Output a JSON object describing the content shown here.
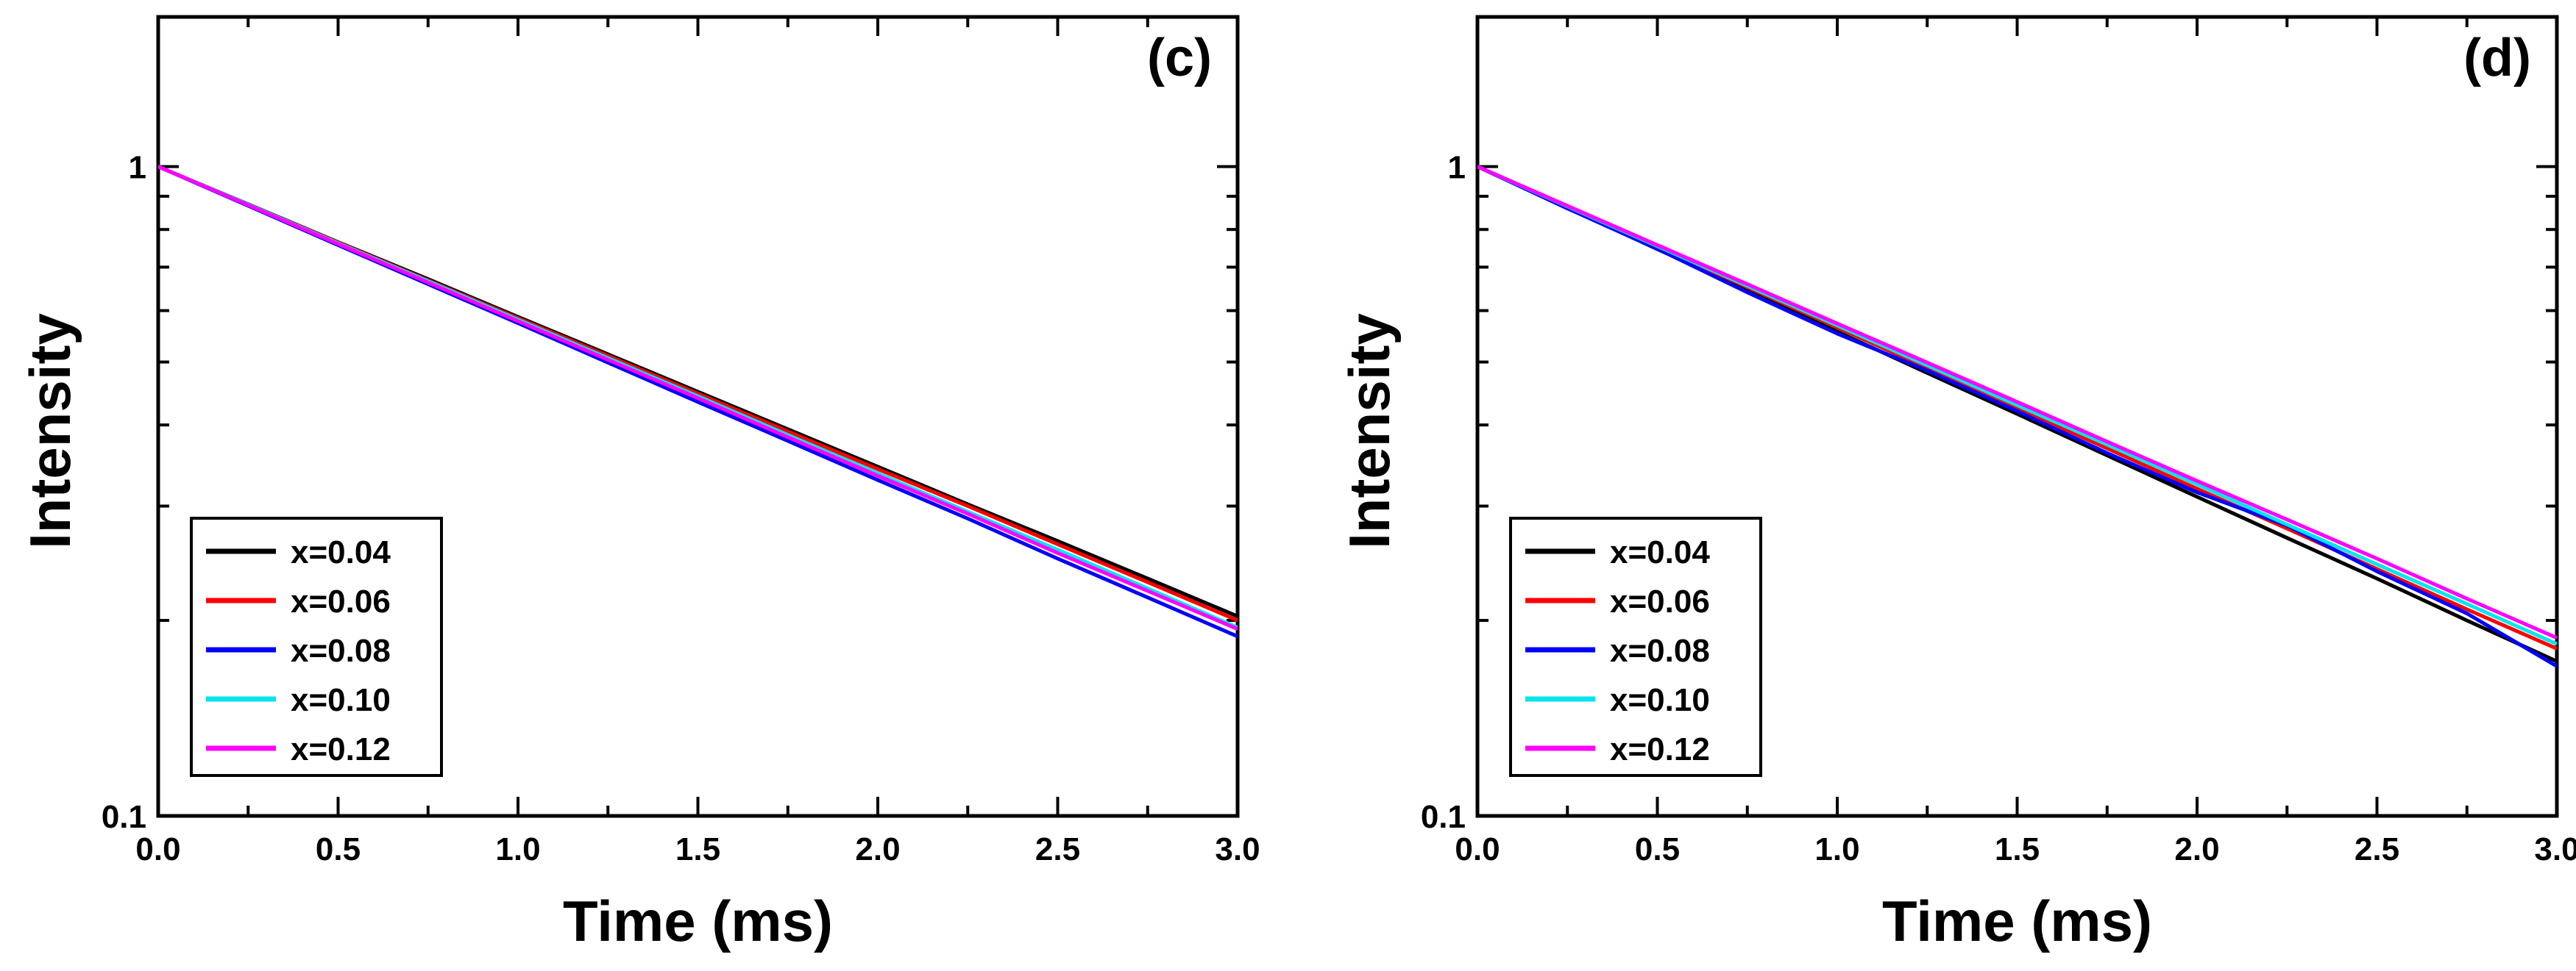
{
  "chart_data": [
    {
      "type": "line",
      "panel_label": "(c)",
      "xlabel": "Time (ms)",
      "ylabel": "Intensity",
      "yscale": "log",
      "xlim": [
        0.0,
        3.0
      ],
      "ylim": [
        0.1,
        1.7
      ],
      "xticks": [
        0.0,
        0.5,
        1.0,
        1.5,
        2.0,
        2.5,
        3.0
      ],
      "xtick_labels": [
        "0.0",
        "0.5",
        "1.0",
        "1.5",
        "2.0",
        "2.5",
        "3.0"
      ],
      "yticks": [
        0.1,
        1
      ],
      "ytick_labels": [
        "0.1",
        "1"
      ],
      "legend_position": "bottom-left",
      "x": [
        0.0,
        0.25,
        0.5,
        0.75,
        1.0,
        1.25,
        1.5,
        1.75,
        2.0,
        2.25,
        2.5,
        2.75,
        3.0
      ],
      "series": [
        {
          "name": "x=0.04",
          "color": "#000000",
          "values": [
            1.0,
            0.875,
            0.765,
            0.671,
            0.587,
            0.514,
            0.45,
            0.394,
            0.345,
            0.302,
            0.265,
            0.232,
            0.203
          ]
        },
        {
          "name": "x=0.06",
          "color": "#ff0000",
          "values": [
            1.0,
            0.874,
            0.764,
            0.668,
            0.584,
            0.511,
            0.447,
            0.391,
            0.342,
            0.3,
            0.262,
            0.229,
            0.2
          ]
        },
        {
          "name": "x=0.08",
          "color": "#0000ff",
          "values": [
            1.0,
            0.87,
            0.757,
            0.659,
            0.574,
            0.499,
            0.434,
            0.378,
            0.329,
            0.287,
            0.249,
            0.217,
            0.189
          ]
        },
        {
          "name": "x=0.10",
          "color": "#00e5ee",
          "values": [
            1.0,
            0.874,
            0.762,
            0.666,
            0.581,
            0.507,
            0.443,
            0.386,
            0.337,
            0.294,
            0.257,
            0.224,
            0.195
          ]
        },
        {
          "name": "x=0.12",
          "color": "#ff00ff",
          "values": [
            1.0,
            0.872,
            0.76,
            0.663,
            0.578,
            0.504,
            0.44,
            0.383,
            0.334,
            0.292,
            0.254,
            0.222,
            0.194
          ]
        }
      ]
    },
    {
      "type": "line",
      "panel_label": "(d)",
      "xlabel": "Time (ms)",
      "ylabel": "Intensity",
      "yscale": "log",
      "xlim": [
        0.0,
        3.0
      ],
      "ylim": [
        0.1,
        1.7
      ],
      "xticks": [
        0.0,
        0.5,
        1.0,
        1.5,
        2.0,
        2.5,
        3.0
      ],
      "xtick_labels": [
        "0.0",
        "0.5",
        "1.0",
        "1.5",
        "2.0",
        "2.5",
        "3.0"
      ],
      "yticks": [
        0.1,
        1
      ],
      "ytick_labels": [
        "0.1",
        "1"
      ],
      "legend_position": "bottom-left",
      "x": [
        0.0,
        0.25,
        0.5,
        0.75,
        1.0,
        1.25,
        1.5,
        1.75,
        2.0,
        2.25,
        2.5,
        2.75,
        3.0
      ],
      "series": [
        {
          "name": "x=0.04",
          "color": "#000000",
          "values": [
            1.0,
            0.864,
            0.746,
            0.645,
            0.557,
            0.481,
            0.416,
            0.359,
            0.31,
            0.268,
            0.232,
            0.2,
            0.173
          ]
        },
        {
          "name": "x=0.06",
          "color": "#ff0000",
          "values": [
            1.0,
            0.867,
            0.752,
            0.652,
            0.565,
            0.49,
            0.425,
            0.368,
            0.319,
            0.277,
            0.24,
            0.208,
            0.181
          ]
        },
        {
          "name": "x=0.08",
          "color": "#0000ff",
          "values": [
            1.0,
            0.862,
            0.747,
            0.64,
            0.553,
            0.485,
            0.42,
            0.362,
            0.315,
            0.28,
            0.238,
            0.205,
            0.17
          ]
        },
        {
          "name": "x=0.10",
          "color": "#00e5ee",
          "values": [
            1.0,
            0.868,
            0.754,
            0.655,
            0.569,
            0.494,
            0.429,
            0.373,
            0.324,
            0.281,
            0.244,
            0.212,
            0.184
          ]
        },
        {
          "name": "x=0.12",
          "color": "#ff00ff",
          "values": [
            1.0,
            0.87,
            0.757,
            0.659,
            0.573,
            0.499,
            0.434,
            0.377,
            0.328,
            0.286,
            0.249,
            0.216,
            0.188
          ]
        }
      ]
    }
  ]
}
